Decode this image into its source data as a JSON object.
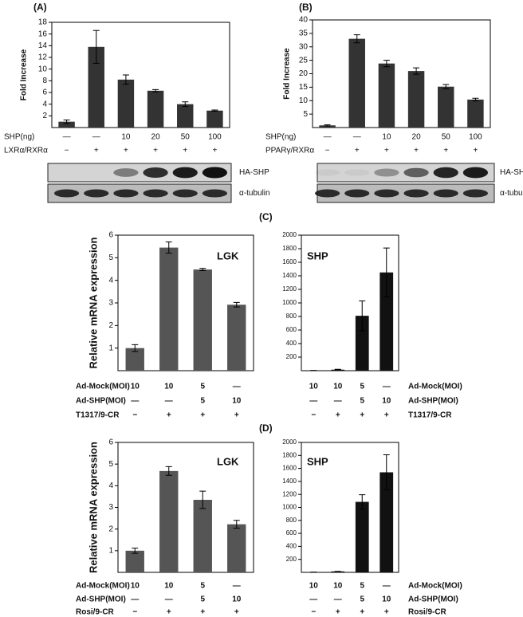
{
  "chart_data": [
    {
      "type": "bar",
      "panel": "(A)",
      "ylabel": "Fold Increase",
      "color": "#333333",
      "values": [
        1.0,
        13.8,
        8.2,
        6.3,
        4.0,
        2.9
      ],
      "errors": [
        0.3,
        2.8,
        0.8,
        0.2,
        0.4,
        0.1
      ],
      "ylim": [
        0,
        18
      ],
      "yticks": [
        2,
        4,
        6,
        8,
        10,
        12,
        14,
        16,
        18
      ],
      "rows": [
        {
          "label": "SHP(ng)",
          "values": [
            "—",
            "—",
            "10",
            "20",
            "50",
            "100"
          ]
        },
        {
          "label": "LXRα/RXRα",
          "values": [
            "−",
            "+",
            "+",
            "+",
            "+",
            "+"
          ]
        }
      ],
      "blot_labels": [
        "HA-SHP",
        "α-tubulin"
      ]
    },
    {
      "type": "bar",
      "panel": "(B)",
      "ylabel": "Fold Increase",
      "color": "#333333",
      "values": [
        0.8,
        33,
        23.8,
        21,
        15.2,
        10.4
      ],
      "errors": [
        0.2,
        1.5,
        1.2,
        1.2,
        0.8,
        0.5
      ],
      "ylim": [
        0,
        40
      ],
      "yticks": [
        5,
        10,
        15,
        20,
        25,
        30,
        35,
        40
      ],
      "rows": [
        {
          "label": "SHP(ng)",
          "values": [
            "—",
            "—",
            "10",
            "20",
            "50",
            "100"
          ]
        },
        {
          "label": "PPARγ/RXRα",
          "values": [
            "−",
            "+",
            "+",
            "+",
            "+",
            "+"
          ]
        }
      ],
      "blot_labels": [
        "HA-SHP",
        "α-tubulin"
      ]
    },
    {
      "type": "bar",
      "panel": "(C)",
      "ylabel": "Relative mRNA expression",
      "label": "LGK",
      "color": "#555555",
      "values": [
        1.0,
        5.45,
        4.48,
        2.92
      ],
      "errors": [
        0.15,
        0.25,
        0.05,
        0.1
      ],
      "ylim": [
        0,
        6
      ],
      "yticks": [
        1,
        2,
        3,
        4,
        5,
        6
      ],
      "rows": [
        {
          "label": "Ad-Mock(MOI)",
          "values": [
            "10",
            "10",
            "5",
            "—"
          ]
        },
        {
          "label": "Ad-SHP(MOI)",
          "values": [
            "—",
            "—",
            "5",
            "10"
          ]
        },
        {
          "label": "T1317/9-CR",
          "values": [
            "−",
            "+",
            "+",
            "+"
          ]
        }
      ]
    },
    {
      "type": "bar",
      "label": "SHP",
      "color": "#111111",
      "values": [
        5,
        15,
        810,
        1450
      ],
      "errors": [
        0,
        5,
        220,
        360
      ],
      "ylim": [
        0,
        2000
      ],
      "yticks": [
        200,
        400,
        600,
        800,
        1000,
        1200,
        1400,
        1600,
        1800,
        2000
      ],
      "rows": [
        {
          "label": "Ad-Mock(MOI)",
          "values": [
            "10",
            "10",
            "5",
            "—"
          ]
        },
        {
          "label": "Ad-SHP(MOI)",
          "values": [
            "—",
            "—",
            "5",
            "10"
          ]
        },
        {
          "label": "T1317/9-CR",
          "values": [
            "−",
            "+",
            "+",
            "+"
          ]
        }
      ]
    },
    {
      "type": "bar",
      "panel": "(D)",
      "ylabel": "Relative mRNA expression",
      "label": "LGK",
      "color": "#555555",
      "values": [
        1.0,
        4.68,
        3.35,
        2.22
      ],
      "errors": [
        0.12,
        0.2,
        0.4,
        0.18
      ],
      "ylim": [
        0,
        6
      ],
      "yticks": [
        1,
        2,
        3,
        4,
        5,
        6
      ],
      "rows": [
        {
          "label": "Ad-Mock(MOI)",
          "values": [
            "10",
            "10",
            "5",
            "—"
          ]
        },
        {
          "label": "Ad-SHP(MOI)",
          "values": [
            "—",
            "—",
            "5",
            "10"
          ]
        },
        {
          "label": "Rosi/9-CR",
          "values": [
            "−",
            "+",
            "+",
            "+"
          ]
        }
      ]
    },
    {
      "type": "bar",
      "label": "SHP",
      "color": "#111111",
      "values": [
        5,
        15,
        1085,
        1540
      ],
      "errors": [
        0,
        0,
        110,
        270
      ],
      "ylim": [
        0,
        2000
      ],
      "yticks": [
        200,
        400,
        600,
        800,
        1000,
        1200,
        1400,
        1600,
        1800,
        2000
      ],
      "rows": [
        {
          "label": "Ad-Mock(MOI)",
          "values": [
            "10",
            "10",
            "5",
            "—"
          ]
        },
        {
          "label": "Ad-SHP(MOI)",
          "values": [
            "—",
            "—",
            "5",
            "10"
          ]
        },
        {
          "label": "Rosi/9-CR",
          "values": [
            "−",
            "+",
            "+",
            "+"
          ]
        }
      ]
    }
  ]
}
